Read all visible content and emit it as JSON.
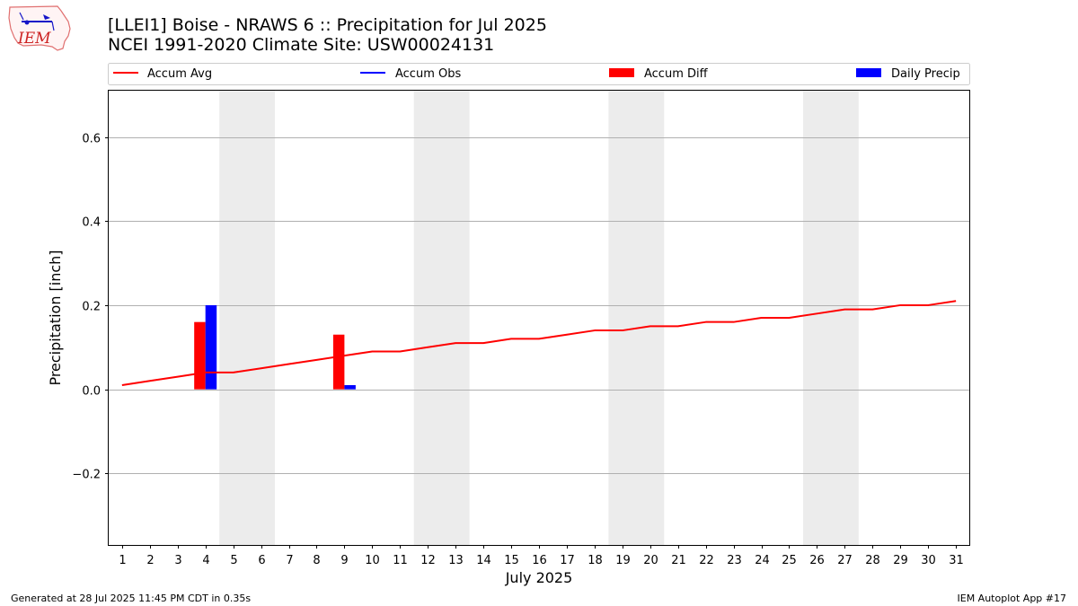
{
  "header": {
    "title_line1": "[LLEI1] Boise - NRAWS 6 :: Precipitation for Jul 2025",
    "title_line2": "NCEI 1991-2020 Climate Site: USW00024131",
    "logo_text": "IEM"
  },
  "footer": {
    "generated": "Generated at 28 Jul 2025 11:45 PM CDT in 0.35s",
    "app": "IEM Autoplot App #17"
  },
  "colors": {
    "accum_avg": "#ff0000",
    "accum_obs": "#0000ff",
    "accum_diff": "#ff0000",
    "daily_precip": "#0000ff",
    "weekend_shade": "#ececec",
    "grid": "#b0b0b0"
  },
  "chart_data": {
    "type": "bar",
    "xlabel": "July 2025",
    "ylabel": "Precipitation [inch]",
    "x": [
      1,
      2,
      3,
      4,
      5,
      6,
      7,
      8,
      9,
      10,
      11,
      12,
      13,
      14,
      15,
      16,
      17,
      18,
      19,
      20,
      21,
      22,
      23,
      24,
      25,
      26,
      27,
      28,
      29,
      30,
      31
    ],
    "xticks": [
      "1",
      "2",
      "3",
      "4",
      "5",
      "6",
      "7",
      "8",
      "9",
      "10",
      "11",
      "12",
      "13",
      "14",
      "15",
      "16",
      "17",
      "18",
      "19",
      "20",
      "21",
      "22",
      "23",
      "24",
      "25",
      "26",
      "27",
      "28",
      "29",
      "30",
      "31"
    ],
    "ylim": [
      -0.37,
      0.71
    ],
    "yticks": [
      -0.2,
      0.0,
      0.2,
      0.4,
      0.6
    ],
    "ytick_labels": [
      "−0.2",
      "0.0",
      "0.2",
      "0.4",
      "0.6"
    ],
    "grid": "horizontal",
    "legend_position": "top",
    "weekend_spans": [
      [
        4.5,
        6.5
      ],
      [
        11.5,
        13.5
      ],
      [
        18.5,
        20.5
      ],
      [
        25.5,
        27.5
      ]
    ],
    "legend": [
      "Accum Avg",
      "Accum Obs",
      "Accum Diff",
      "Daily Precip"
    ],
    "series": [
      {
        "name": "Accum Avg",
        "kind": "line",
        "color": "#ff0000",
        "values": [
          0.01,
          0.02,
          0.03,
          0.04,
          0.04,
          0.05,
          0.06,
          0.07,
          0.08,
          0.09,
          0.09,
          0.1,
          0.11,
          0.11,
          0.12,
          0.12,
          0.13,
          0.14,
          0.14,
          0.15,
          0.15,
          0.16,
          0.16,
          0.17,
          0.17,
          0.18,
          0.19,
          0.19,
          0.2,
          0.2,
          0.21
        ]
      },
      {
        "name": "Accum Diff",
        "kind": "bar",
        "color": "#ff0000",
        "points": [
          {
            "x": 4,
            "value": 0.16
          },
          {
            "x": 9,
            "value": 0.13
          }
        ]
      },
      {
        "name": "Daily Precip",
        "kind": "bar",
        "color": "#0000ff",
        "points": [
          {
            "x": 4,
            "value": 0.2
          },
          {
            "x": 9,
            "value": 0.01
          }
        ]
      }
    ]
  }
}
